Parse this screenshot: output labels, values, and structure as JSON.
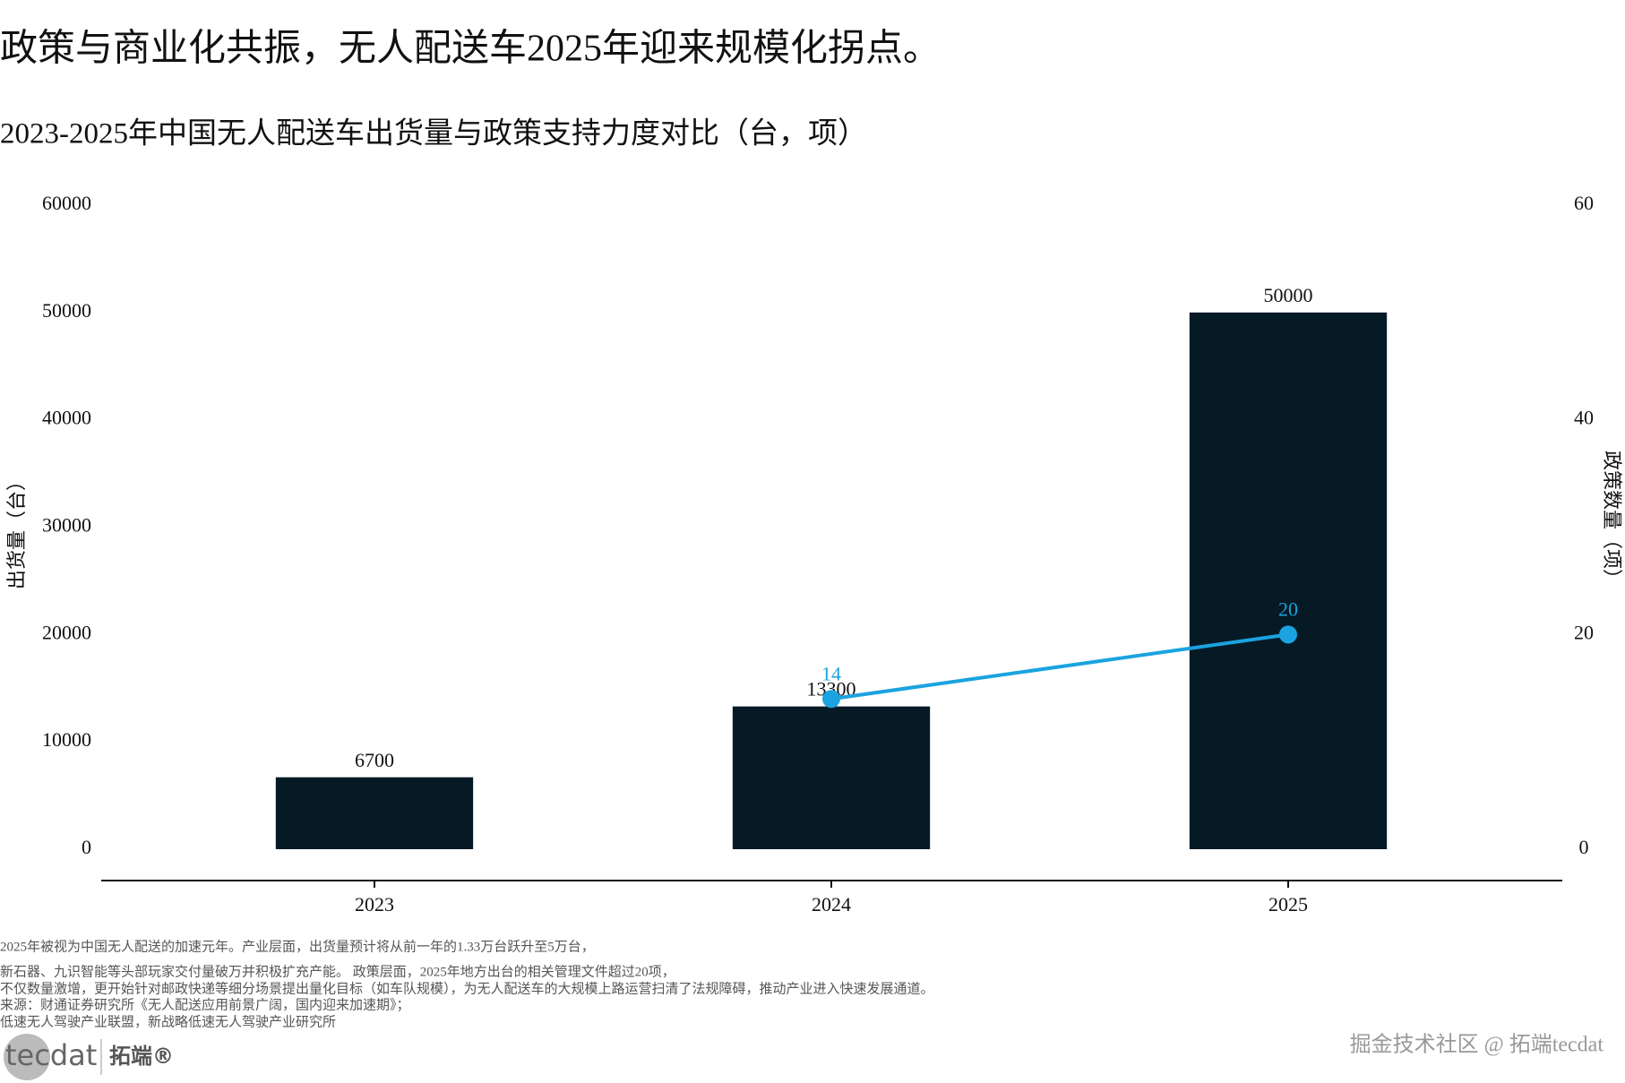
{
  "chart_data": {
    "type": "bar",
    "title": "政策与商业化共振，无人配送车2025年迎来规模化拐点。",
    "subtitle": "2023-2025年中国无人配送车出货量与政策支持力度对比（台，项）",
    "ylabel": "出货量（台）",
    "y2label": "政策数量（项）",
    "categories": [
      "2023",
      "2024",
      "2025"
    ],
    "series": [
      {
        "type": "bar",
        "color": "#061a26",
        "values": [
          6700,
          13300,
          50000
        ]
      },
      {
        "type": "line",
        "axis": "y2",
        "color": "#1aa3e0",
        "values": [
          null,
          14,
          20
        ]
      }
    ],
    "ylim": [
      0,
      60000
    ],
    "yticks": [
      0,
      10000,
      20000,
      30000,
      40000,
      50000,
      60000
    ],
    "y2lim": [
      0,
      60
    ],
    "y2ticks": [
      0,
      20,
      40,
      60
    ],
    "grid": false
  },
  "notes": [
    "2025年被视为中国无人配送的加速元年。产业层面，出货量预计将从前一年的1.33万台跃升至5万台，",
    "新石器、九识智能等头部玩家交付量破万并积极扩充产能。 政策层面，2025年地方出台的相关管理文件超过20项，",
    "不仅数量激增，更开始针对邮政快递等细分场景提出量化目标（如车队规模），为无人配送车的大规模上路运营扫清了法规障碍，推动产业进入快速发展通道。",
    "来源：财通证券研究所《无人配送应用前景广阔，国内迎来加速期》；",
    "低速无人驾驶产业联盟，新战略低速无人驾驶产业研究所"
  ],
  "footer": {
    "logo": "tecdat",
    "brand": "拓端®",
    "watermark": "掘金技术社区 @ 拓端tecdat"
  }
}
